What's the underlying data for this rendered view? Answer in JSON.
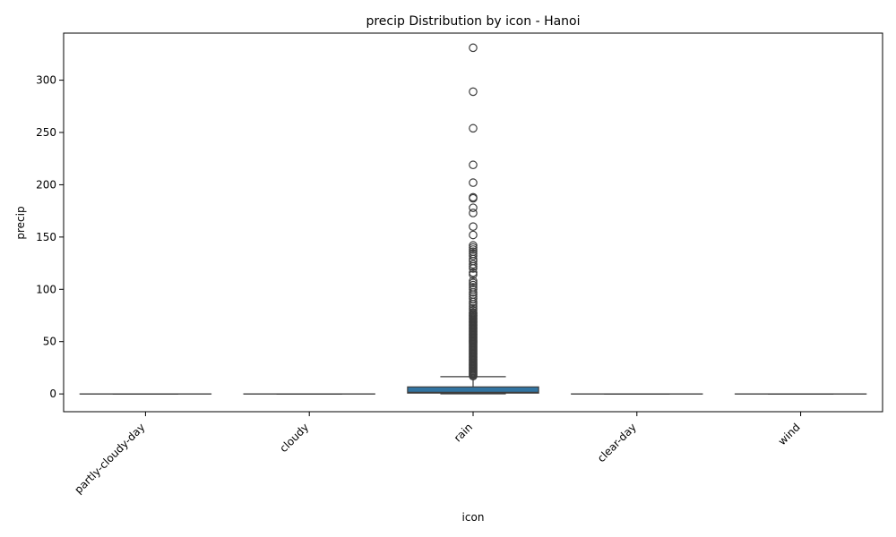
{
  "chart_data": {
    "type": "box",
    "title": "precip Distribution by icon - Hanoi",
    "xlabel": "icon",
    "ylabel": "precip",
    "categories": [
      "partly-cloudy-day",
      "cloudy",
      "rain",
      "clear-day",
      "wind"
    ],
    "ylim": [
      -17,
      345
    ],
    "yticks": [
      0,
      50,
      100,
      150,
      200,
      250,
      300
    ],
    "grid": false,
    "legend": "none",
    "box_color": "#3274a1",
    "line_color": "#3d3d3d",
    "boxes": [
      {
        "category": "partly-cloudy-day",
        "min": 0,
        "q1": 0,
        "median": 0,
        "q3": 0,
        "max": 0,
        "outliers": []
      },
      {
        "category": "cloudy",
        "min": 0,
        "q1": 0,
        "median": 0,
        "q3": 0,
        "max": 0,
        "outliers": []
      },
      {
        "category": "rain",
        "min": 0.1,
        "q1": 0.8,
        "median": 1.5,
        "q3": 6.7,
        "max": 16.5,
        "outliers": [
          17,
          18,
          19,
          20,
          21,
          22,
          23,
          24,
          25,
          26,
          27,
          28,
          29,
          30,
          31,
          32,
          33,
          34,
          35,
          36,
          37,
          38,
          39,
          40,
          41,
          42,
          43,
          44,
          45,
          46,
          47,
          48,
          49,
          50,
          51,
          52,
          53,
          54,
          55,
          56,
          57,
          58,
          59,
          60,
          61,
          62,
          63,
          64,
          65,
          66,
          67,
          68,
          69,
          70,
          71,
          72,
          73,
          74,
          75,
          76,
          77,
          78,
          80,
          82,
          84,
          86,
          88,
          91,
          93,
          95,
          97,
          100,
          102,
          104,
          106,
          108,
          114,
          116,
          120,
          122,
          124,
          127,
          129,
          132,
          134,
          136,
          138,
          140,
          142,
          152,
          160,
          173,
          178,
          187,
          188,
          202,
          219,
          254,
          289,
          331
        ]
      },
      {
        "category": "clear-day",
        "min": 0,
        "q1": 0,
        "median": 0,
        "q3": 0,
        "max": 0,
        "outliers": []
      },
      {
        "category": "wind",
        "min": 0,
        "q1": 0,
        "median": 0,
        "q3": 0,
        "max": 0,
        "outliers": []
      }
    ]
  }
}
